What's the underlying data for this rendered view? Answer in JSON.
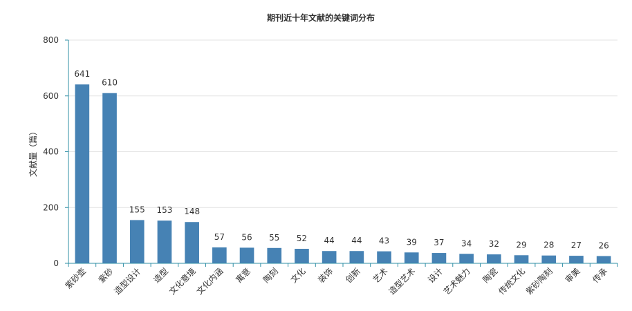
{
  "chart_data": {
    "type": "bar",
    "title": "期刊近十年文献的关键词分布",
    "xlabel": "",
    "ylabel": "文献量（篇）",
    "ylim": [
      0,
      800
    ],
    "yticks": [
      0,
      200,
      400,
      600,
      800
    ],
    "grid": true,
    "legend": "none",
    "bar_color": "#4682b4",
    "axis_color": "#2f8fa6",
    "categories": [
      "紫砂壶",
      "紫砂",
      "造型设计",
      "造型",
      "文化意境",
      "文化内涵",
      "寓意",
      "陶刻",
      "文化",
      "装饰",
      "创新",
      "艺术",
      "造型艺术",
      "设计",
      "艺术魅力",
      "陶瓷",
      "传统文化",
      "紫砂陶刻",
      "审美",
      "传承"
    ],
    "values": [
      641,
      610,
      155,
      153,
      148,
      57,
      56,
      55,
      52,
      44,
      44,
      43,
      39,
      37,
      34,
      32,
      29,
      28,
      27,
      26
    ]
  }
}
